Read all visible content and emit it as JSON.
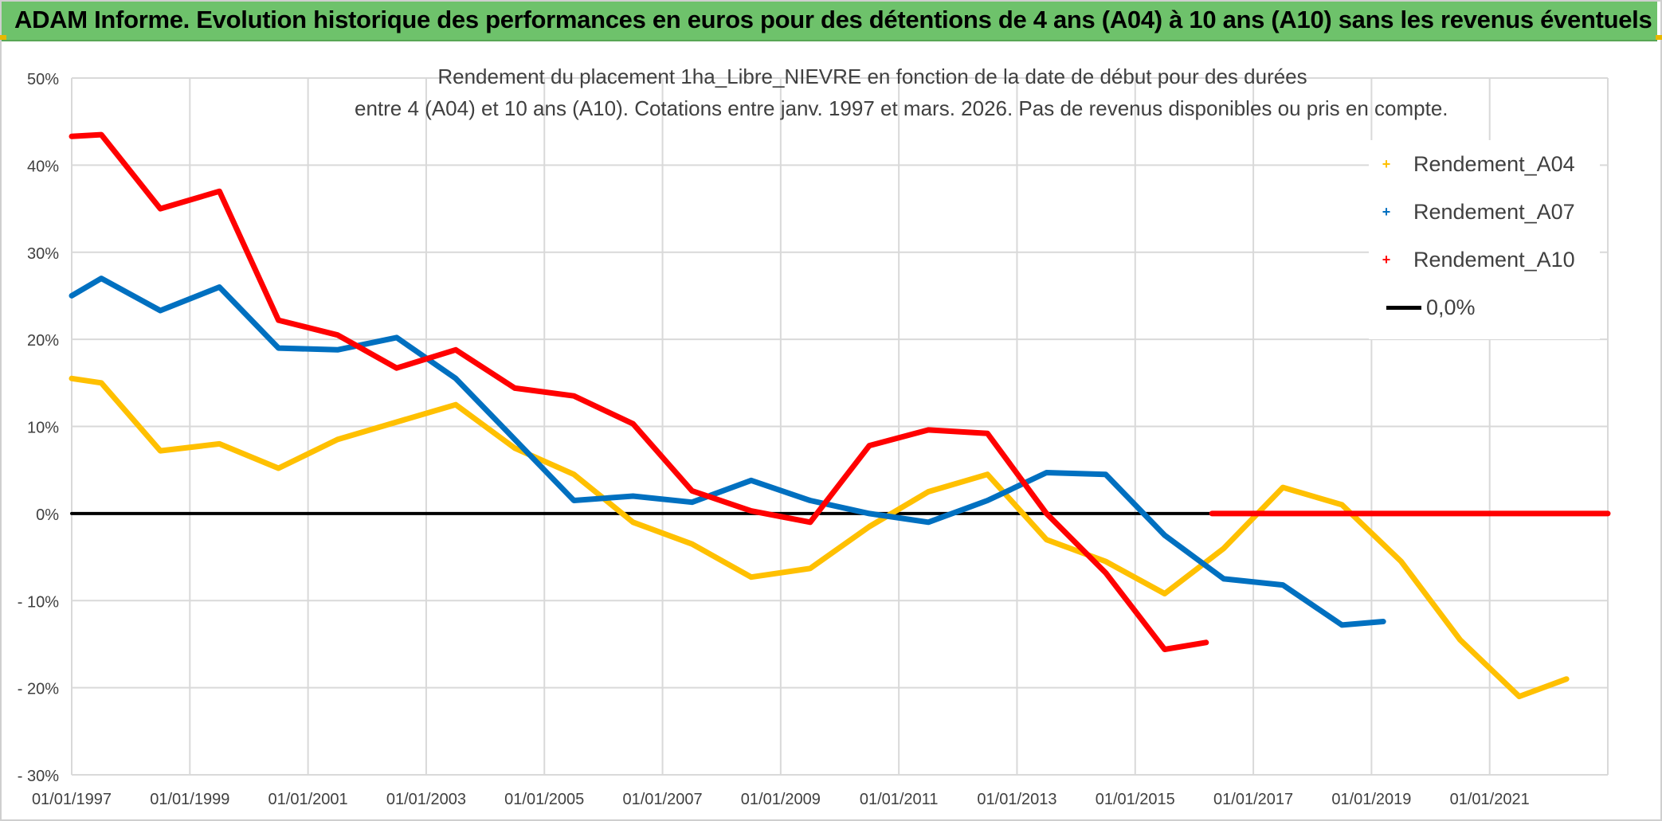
{
  "banner": {
    "title": "ADAM Informe. Evolution historique des performances en euros pour des détentions de 4 ans (A04) à 10 ans (A10) sans les revenus éventuels"
  },
  "chart_data": {
    "type": "line",
    "title_line1": "Rendement du placement 1ha_Libre_NIEVRE en fonction de la date de début pour des durées",
    "title_line2": "entre 4 (A04) et 10 ans (A10). Cotations entre janv. 1997 et mars. 2026. Pas de revenus disponibles ou pris en compte.",
    "xlabel": "",
    "ylabel": "",
    "x_range": [
      1997.0,
      2023.0
    ],
    "ylim": [
      -30,
      50
    ],
    "y_ticks": [
      50,
      40,
      30,
      20,
      10,
      0,
      -10,
      -20,
      -30
    ],
    "y_tick_labels": [
      "50%",
      "40%",
      "30%",
      "20%",
      "10%",
      "0%",
      "- 10%",
      "- 20%",
      "- 30%"
    ],
    "x_ticks": [
      1997,
      1999,
      2001,
      2003,
      2005,
      2007,
      2009,
      2011,
      2013,
      2015,
      2017,
      2019,
      2021
    ],
    "x_tick_labels": [
      "01/01/1997",
      "01/01/1999",
      "01/01/2001",
      "01/01/2003",
      "01/01/2005",
      "01/01/2007",
      "01/01/2009",
      "01/01/2011",
      "01/01/2013",
      "01/01/2015",
      "01/01/2017",
      "01/01/2019",
      "01/01/2021"
    ],
    "grid": true,
    "legend_position": "top-right",
    "series": [
      {
        "name": "Rendement_A04",
        "color": "#ffc000",
        "x": [
          1997.0,
          1997.5,
          1998.5,
          1999.5,
          2000.5,
          2001.5,
          2002.5,
          2003.5,
          2004.5,
          2005.5,
          2006.5,
          2007.5,
          2008.5,
          2009.5,
          2010.5,
          2011.5,
          2012.5,
          2013.5,
          2014.5,
          2015.5,
          2016.5,
          2017.5,
          2018.5,
          2019.5,
          2020.5,
          2021.5,
          2022.3
        ],
        "y": [
          15.5,
          15.0,
          7.2,
          8.0,
          5.2,
          8.5,
          10.5,
          12.5,
          7.5,
          4.5,
          -1.0,
          -3.5,
          -7.3,
          -6.3,
          -1.5,
          2.5,
          4.5,
          -3.0,
          -5.5,
          -9.2,
          -4.0,
          3.0,
          1.0,
          -5.5,
          -14.5,
          -21.0,
          -19.0
        ]
      },
      {
        "name": "Rendement_A07",
        "color": "#0070c0",
        "x": [
          1997.0,
          1997.5,
          1998.5,
          1999.5,
          2000.5,
          2001.5,
          2002.5,
          2003.5,
          2004.5,
          2005.5,
          2006.5,
          2007.5,
          2008.5,
          2009.5,
          2010.5,
          2011.5,
          2012.5,
          2013.5,
          2014.5,
          2015.5,
          2016.5,
          2017.5,
          2018.5,
          2019.2
        ],
        "y": [
          25.0,
          27.0,
          23.3,
          26.0,
          19.0,
          18.8,
          20.2,
          15.5,
          8.5,
          1.5,
          2.0,
          1.3,
          3.8,
          1.5,
          0.0,
          -1.0,
          1.5,
          4.7,
          4.5,
          -2.5,
          -7.5,
          -8.2,
          -12.8,
          -12.4
        ]
      },
      {
        "name": "Rendement_A10",
        "color": "#ff0000",
        "x": [
          1997.0,
          1997.5,
          1998.5,
          1999.5,
          2000.5,
          2001.5,
          2002.5,
          2003.5,
          2004.5,
          2005.5,
          2006.5,
          2007.5,
          2008.5,
          2009.5,
          2010.5,
          2011.5,
          2012.5,
          2013.5,
          2014.5,
          2015.5,
          2016.2
        ],
        "y": [
          43.3,
          43.5,
          35.0,
          37.0,
          22.2,
          20.5,
          16.7,
          18.8,
          14.4,
          13.5,
          10.3,
          2.6,
          0.3,
          -1.0,
          7.8,
          9.6,
          9.2,
          0.0,
          -6.8,
          -15.6,
          -14.8
        ]
      },
      {
        "name": "Rendement_A10_zero",
        "legend": false,
        "color": "#ff0000",
        "x": [
          2016.3,
          2023.0
        ],
        "y": [
          0.0,
          0.0
        ]
      },
      {
        "name": "0,0%",
        "color": "#000000",
        "x": [
          1997.0,
          2016.3
        ],
        "y": [
          0.0,
          0.0
        ]
      }
    ]
  },
  "legend": {
    "a04": "Rendement_A04",
    "a07": "Rendement_A07",
    "a10": "Rendement_A10",
    "zero": "0,0%",
    "marker_glyph": "+"
  }
}
